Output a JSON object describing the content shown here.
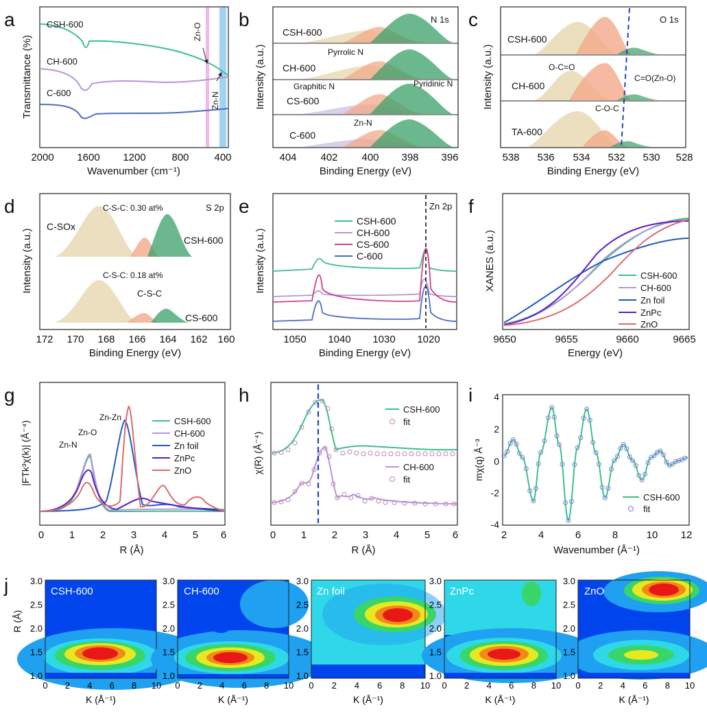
{
  "panels": {
    "a": {
      "letter": "a",
      "xlabel": "Wavenumber (cm⁻¹)",
      "ylabel": "Transmittance (%)",
      "xticks": [
        "2000",
        "1600",
        "1200",
        "800",
        "400"
      ],
      "series": [
        "CSH-600",
        "CH-600",
        "C-600"
      ],
      "annotations": [
        "Zn-O",
        "Zn-N"
      ]
    },
    "b": {
      "letter": "b",
      "xlabel": "Binding Energy (eV)",
      "ylabel": "Intensity (a.u.)",
      "xticks": [
        "404",
        "402",
        "400",
        "398",
        "396"
      ],
      "corner": "N 1s",
      "samples": [
        "CSH-600",
        "CH-600",
        "CS-600",
        "C-600"
      ],
      "annotations": [
        "Pyrrolic N",
        "Graphitic N",
        "Pyridinic N",
        "Zn-N"
      ]
    },
    "c": {
      "letter": "c",
      "xlabel": "Binding Energy (eV)",
      "ylabel": "Intensity (a.u.)",
      "xticks": [
        "538",
        "536",
        "534",
        "532",
        "530",
        "528"
      ],
      "corner": "O 1s",
      "samples": [
        "CSH-600",
        "CH-600",
        "TA-600"
      ],
      "annotations": [
        "O-C=O",
        "C=O(Zn-O)",
        "C-O-C"
      ]
    },
    "d": {
      "letter": "d",
      "xlabel": "Binding Energy (eV)",
      "ylabel": "Intensity (a.u.)",
      "xticks": [
        "172",
        "170",
        "168",
        "166",
        "164",
        "162",
        "160"
      ],
      "corner": "S 2p",
      "samples": [
        "CSH-600",
        "CS-600"
      ],
      "annotations": [
        "C-S-C: 0.30 at%",
        "C-S-C: 0.18 at%",
        "C-SOx",
        "C-S-C"
      ]
    },
    "e": {
      "letter": "e",
      "xlabel": "Binding Energy (eV)",
      "ylabel": "Intensity (a.u.)",
      "xticks": [
        "1050",
        "1040",
        "1030",
        "1020"
      ],
      "corner": "Zn 2p",
      "legend": [
        "CSH-600",
        "CH-600",
        "CS-600",
        "C-600"
      ]
    },
    "f": {
      "letter": "f",
      "xlabel": "Energy (eV)",
      "ylabel": "XANES (a.u.)",
      "xticks": [
        "9650",
        "9655",
        "9660",
        "9665"
      ],
      "legend": [
        "CSH-600",
        "CH-600",
        "Zn foil",
        "ZnPc",
        "ZnO"
      ]
    },
    "g": {
      "letter": "g",
      "xlabel": "R (Å)",
      "ylabel": "|FTk³χ(k)| (Å⁻⁴)",
      "xticks": [
        "0",
        "1",
        "2",
        "3",
        "4",
        "5",
        "6"
      ],
      "legend": [
        "CSH-600",
        "CH-600",
        "Zn foil",
        "ZnPc",
        "ZnO"
      ],
      "annotations": [
        "Zn-Zn",
        "Zn-O",
        "Zn-N"
      ]
    },
    "h": {
      "letter": "h",
      "xlabel": "R (Å)",
      "ylabel": "χ(R) (Å⁻⁴)",
      "xticks": [
        "0",
        "1",
        "2",
        "3",
        "4",
        "5",
        "6"
      ],
      "legend_top": [
        "CSH-600",
        "fit"
      ],
      "legend_bottom": [
        "CH-600",
        "fit"
      ]
    },
    "i": {
      "letter": "i",
      "xlabel": "Wavenumber (Å⁻¹)",
      "ylabel": "mχ(q) Å⁻³",
      "xticks": [
        "2",
        "4",
        "6",
        "8",
        "10",
        "12"
      ],
      "yticks": [
        "4",
        "2",
        "0",
        "-2",
        "-4"
      ],
      "legend": [
        "CSH-600",
        "fit"
      ]
    },
    "j": {
      "letter": "j",
      "ylabel": "R (Å)",
      "xlabel": "K (Å⁻¹)",
      "yticks": [
        "3.0",
        "2.5",
        "2.0",
        "1.5",
        "1.0"
      ],
      "xticks": [
        "0",
        "2",
        "4",
        "6",
        "8",
        "10"
      ],
      "maps": [
        "CSH-600",
        "CH-600",
        "Zn foil",
        "ZnPc",
        "ZnO"
      ]
    }
  },
  "colors": {
    "csh": "#3cc08a",
    "ch": "#b595d6",
    "cs": "#d0408a",
    "c": "#4a6cc2",
    "znfoil": "#1f5bc2",
    "znpc": "#5a1ec8",
    "zno": "#dd6a6a",
    "fit": "#b070b0"
  },
  "chart_data": [
    {
      "panel": "a",
      "type": "line",
      "xlabel": "Wavenumber (cm⁻¹)",
      "ylabel": "Transmittance (%)",
      "xlim": [
        2000,
        400
      ],
      "series": [
        {
          "name": "CSH-600",
          "points": [
            [
              2000,
              0.95
            ],
            [
              1800,
              0.95
            ],
            [
              1650,
              0.93
            ],
            [
              1620,
              0.82
            ],
            [
              1580,
              0.9
            ],
            [
              1400,
              0.88
            ],
            [
              1200,
              0.85
            ],
            [
              1000,
              0.82
            ],
            [
              800,
              0.8
            ],
            [
              600,
              0.76
            ],
            [
              400,
              0.72
            ]
          ]
        },
        {
          "name": "CH-600",
          "points": [
            [
              2000,
              0.63
            ],
            [
              1800,
              0.64
            ],
            [
              1620,
              0.55
            ],
            [
              1580,
              0.6
            ],
            [
              1400,
              0.58
            ],
            [
              1200,
              0.6
            ],
            [
              1000,
              0.6
            ],
            [
              800,
              0.6
            ],
            [
              600,
              0.59
            ],
            [
              420,
              0.52
            ]
          ]
        },
        {
          "name": "C-600",
          "points": [
            [
              2000,
              0.32
            ],
            [
              1800,
              0.33
            ],
            [
              1620,
              0.22
            ],
            [
              1560,
              0.25
            ],
            [
              1400,
              0.27
            ],
            [
              1200,
              0.26
            ],
            [
              1000,
              0.24
            ],
            [
              800,
              0.24
            ],
            [
              600,
              0.24
            ],
            [
              420,
              0.22
            ]
          ]
        }
      ]
    },
    {
      "panel": "i",
      "type": "scatter",
      "xlabel": "Wavenumber (Å⁻¹)",
      "ylabel": "mχ(q) Å⁻³",
      "xlim": [
        2,
        12
      ],
      "ylim": [
        -4,
        4
      ],
      "series": [
        {
          "name": "CSH-600",
          "points": [
            [
              2,
              0.3
            ],
            [
              2.5,
              1.3
            ],
            [
              3,
              0.2
            ],
            [
              3.6,
              -2.5
            ],
            [
              4,
              0.5
            ],
            [
              4.6,
              3.3
            ],
            [
              5,
              1
            ],
            [
              5.5,
              -3.7
            ],
            [
              6,
              0.8
            ],
            [
              6.5,
              3.2
            ],
            [
              7,
              0.5
            ],
            [
              7.5,
              -2.3
            ],
            [
              8,
              0
            ],
            [
              8.5,
              1
            ],
            [
              9,
              0
            ],
            [
              9.5,
              -1.2
            ],
            [
              10,
              0.2
            ],
            [
              10.5,
              0.6
            ],
            [
              11,
              -0.3
            ],
            [
              11.5,
              0
            ],
            [
              12,
              0.2
            ]
          ]
        },
        {
          "name": "fit",
          "points": [
            [
              2,
              0.3
            ],
            [
              2.5,
              1.3
            ],
            [
              3,
              0.2
            ],
            [
              3.6,
              -2.5
            ],
            [
              4,
              0.5
            ],
            [
              4.6,
              3.3
            ],
            [
              5,
              1
            ],
            [
              5.5,
              -3.7
            ],
            [
              6,
              0.8
            ],
            [
              6.5,
              3.2
            ],
            [
              7,
              0.5
            ],
            [
              7.5,
              -2.3
            ],
            [
              8,
              0
            ],
            [
              8.5,
              1
            ],
            [
              9,
              0
            ],
            [
              9.5,
              -1.2
            ],
            [
              10,
              0.2
            ],
            [
              10.5,
              0.6
            ],
            [
              11,
              -0.3
            ],
            [
              11.5,
              0
            ],
            [
              12,
              0.2
            ]
          ]
        }
      ]
    },
    {
      "panel": "g",
      "type": "line",
      "xlabel": "R (Å)",
      "ylabel": "|FTk³χ(k)| (Å⁻⁴)",
      "xlim": [
        0,
        6
      ],
      "series": [
        {
          "name": "CSH-600",
          "peaks": [
            [
              1.55,
              0.45
            ]
          ]
        },
        {
          "name": "CH-600",
          "peaks": [
            [
              1.55,
              0.42
            ]
          ]
        },
        {
          "name": "Zn foil",
          "peaks": [
            [
              2.3,
              0.62
            ]
          ]
        },
        {
          "name": "ZnPc",
          "peaks": [
            [
              1.6,
              0.5
            ]
          ]
        },
        {
          "name": "ZnO",
          "peaks": [
            [
              1.55,
              0.4
            ],
            [
              2.85,
              1.0
            ],
            [
              4.1,
              0.25
            ],
            [
              5.2,
              0.15
            ]
          ]
        }
      ]
    }
  ]
}
